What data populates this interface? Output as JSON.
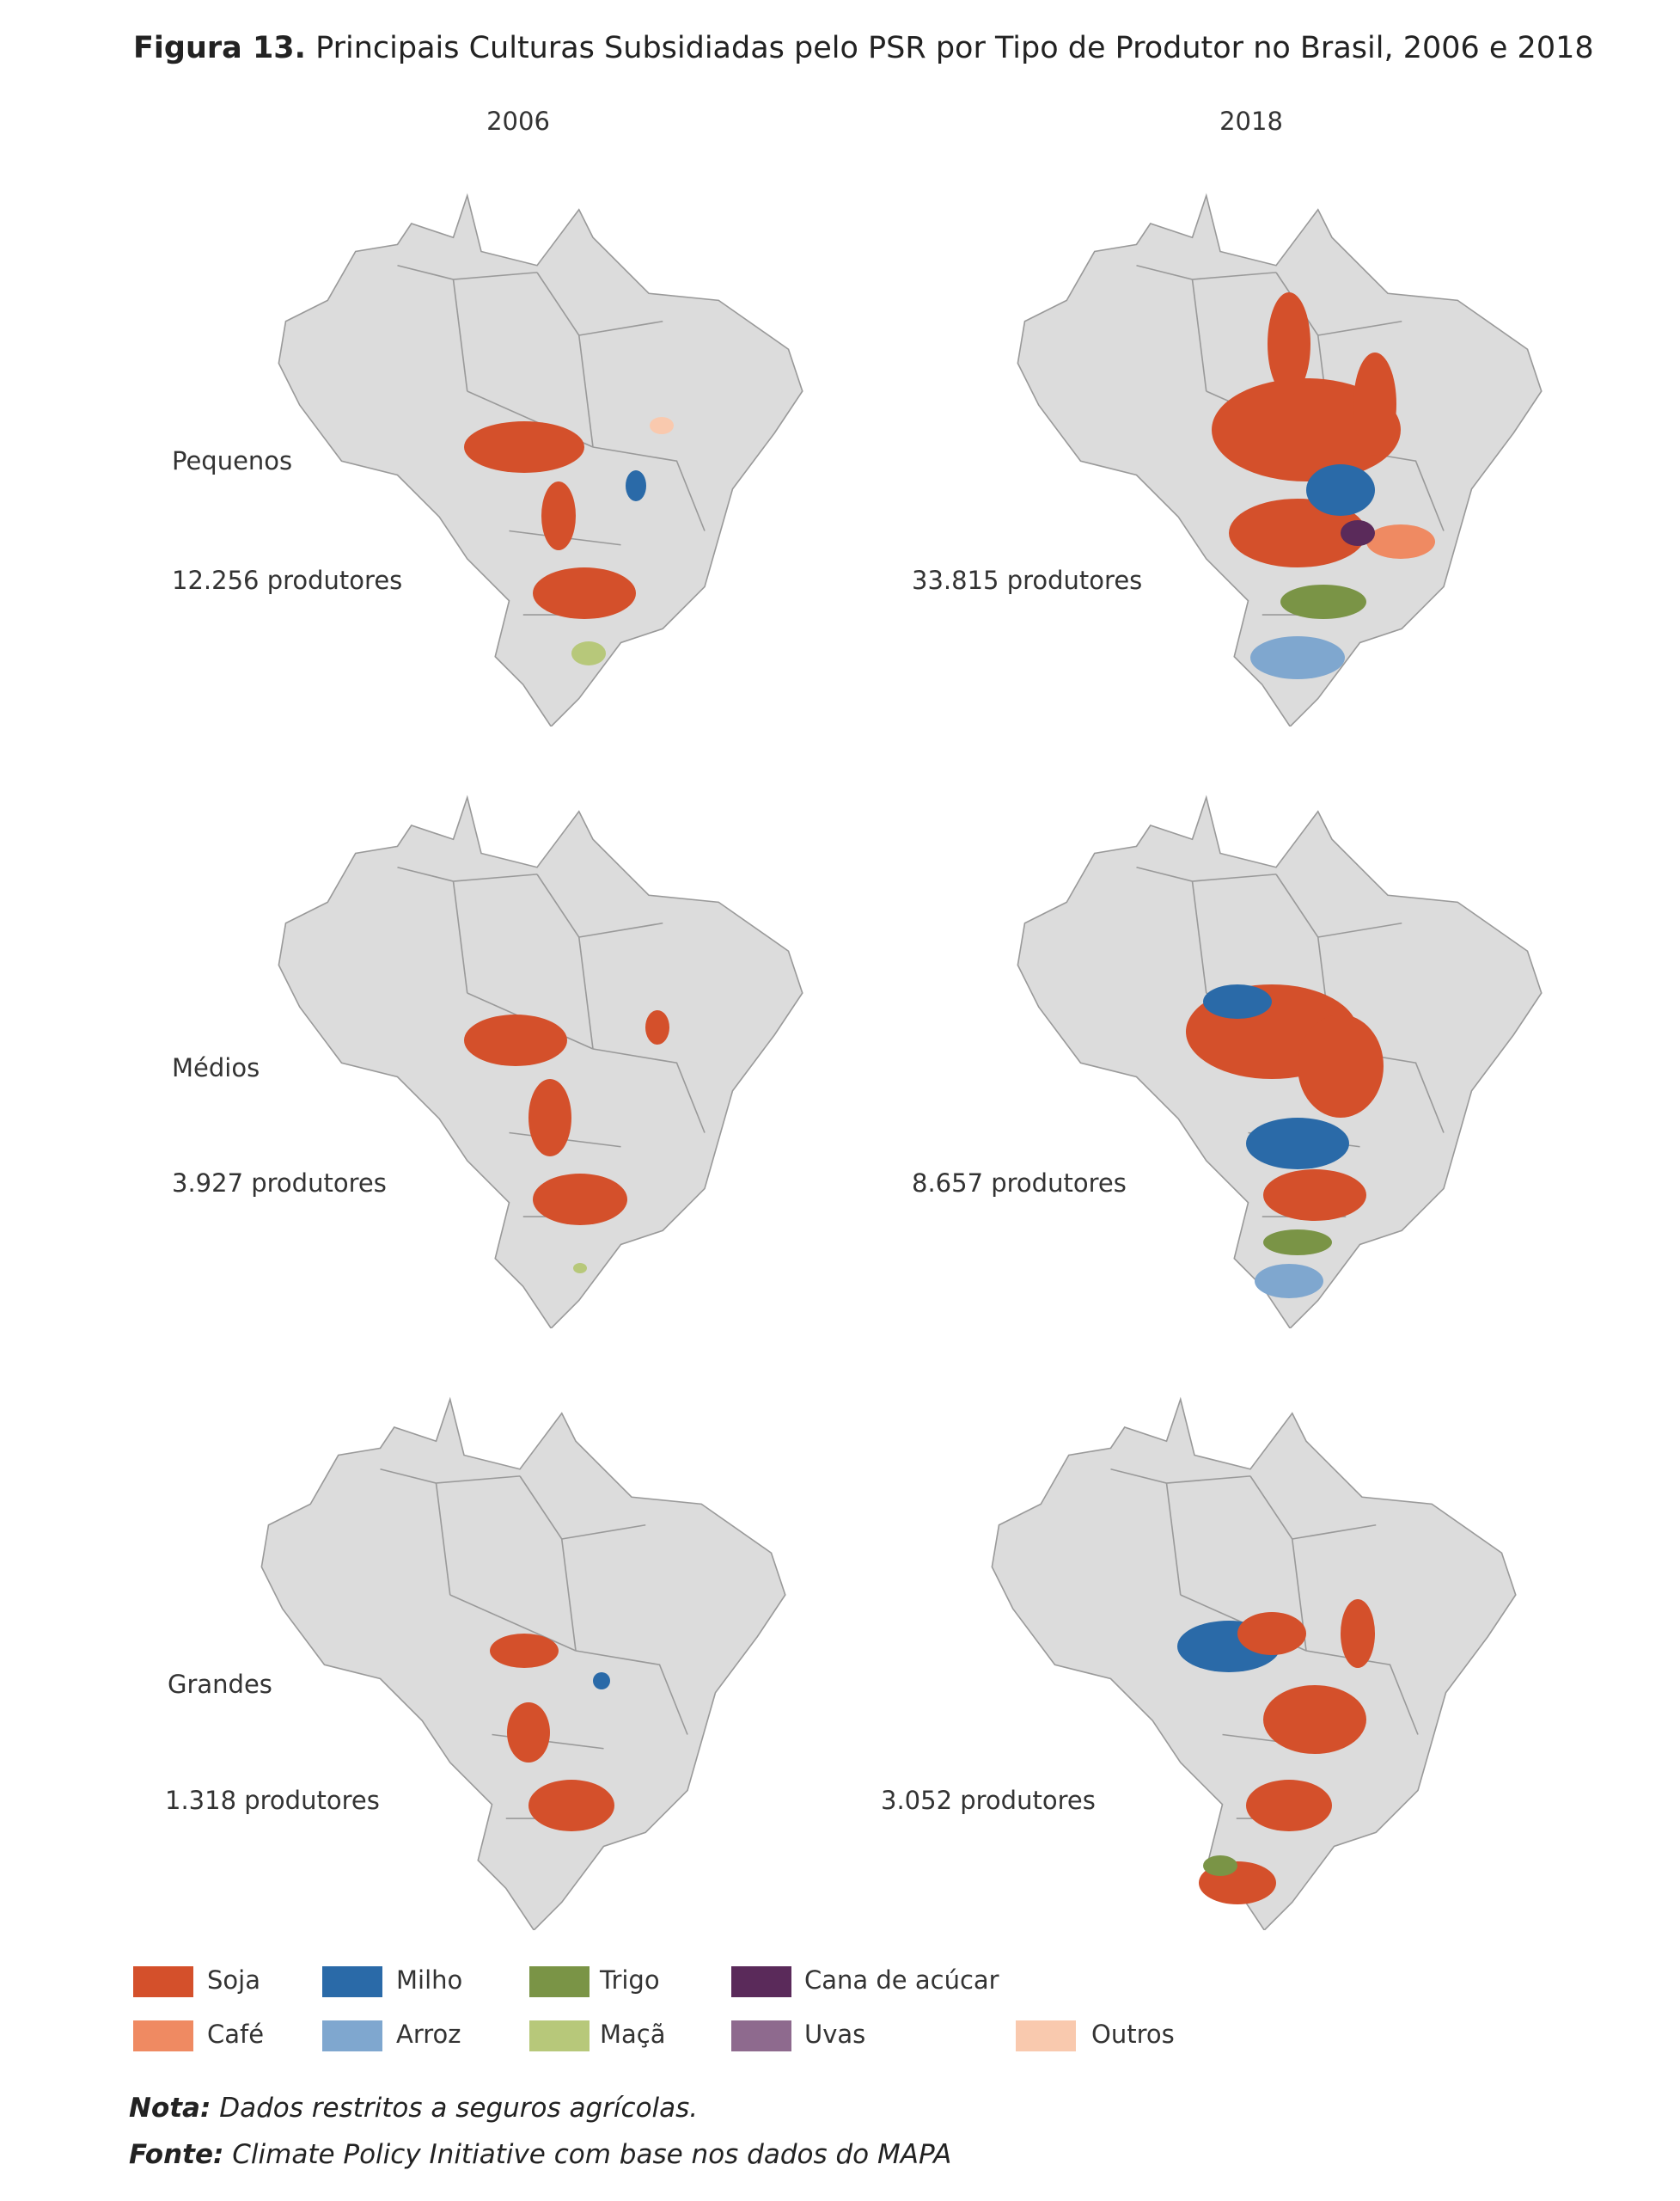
{
  "header": {
    "label": "Figura 13.",
    "title": "Principais Culturas Subsidiadas pelo PSR por Tipo de Produtor no Brasil, 2006 e 2018"
  },
  "columns": [
    "2006",
    "2018"
  ],
  "rows": [
    {
      "label": "Pequenos",
      "counts": [
        "12.256 produtores",
        "33.815 produtores"
      ]
    },
    {
      "label": "Médios",
      "counts": [
        "3.927 produtores",
        "8.657 produtores"
      ]
    },
    {
      "label": "Grandes",
      "counts": [
        "1.318 produtores",
        "3.052 produtores"
      ]
    }
  ],
  "legend": [
    {
      "name": "Soja",
      "color": "#d4502b"
    },
    {
      "name": "Milho",
      "color": "#2a6aa8"
    },
    {
      "name": "Trigo",
      "color": "#7a9446"
    },
    {
      "name": "Cana de acúcar",
      "color": "#5a2a5a"
    },
    {
      "name": "Café",
      "color": "#ef8a62"
    },
    {
      "name": "Arroz",
      "color": "#7fa7cf"
    },
    {
      "name": "Maçã",
      "color": "#b7c87a"
    },
    {
      "name": "Uvas",
      "color": "#8e6a8e"
    },
    {
      "name": "Outros",
      "color": "#f9c9ae"
    }
  ],
  "note": {
    "label": "Nota:",
    "text": "Dados restritos a seguros agrícolas."
  },
  "source": {
    "label": "Fonte:",
    "text": "Climate Policy Initiative com base nos dados do MAPA"
  }
}
